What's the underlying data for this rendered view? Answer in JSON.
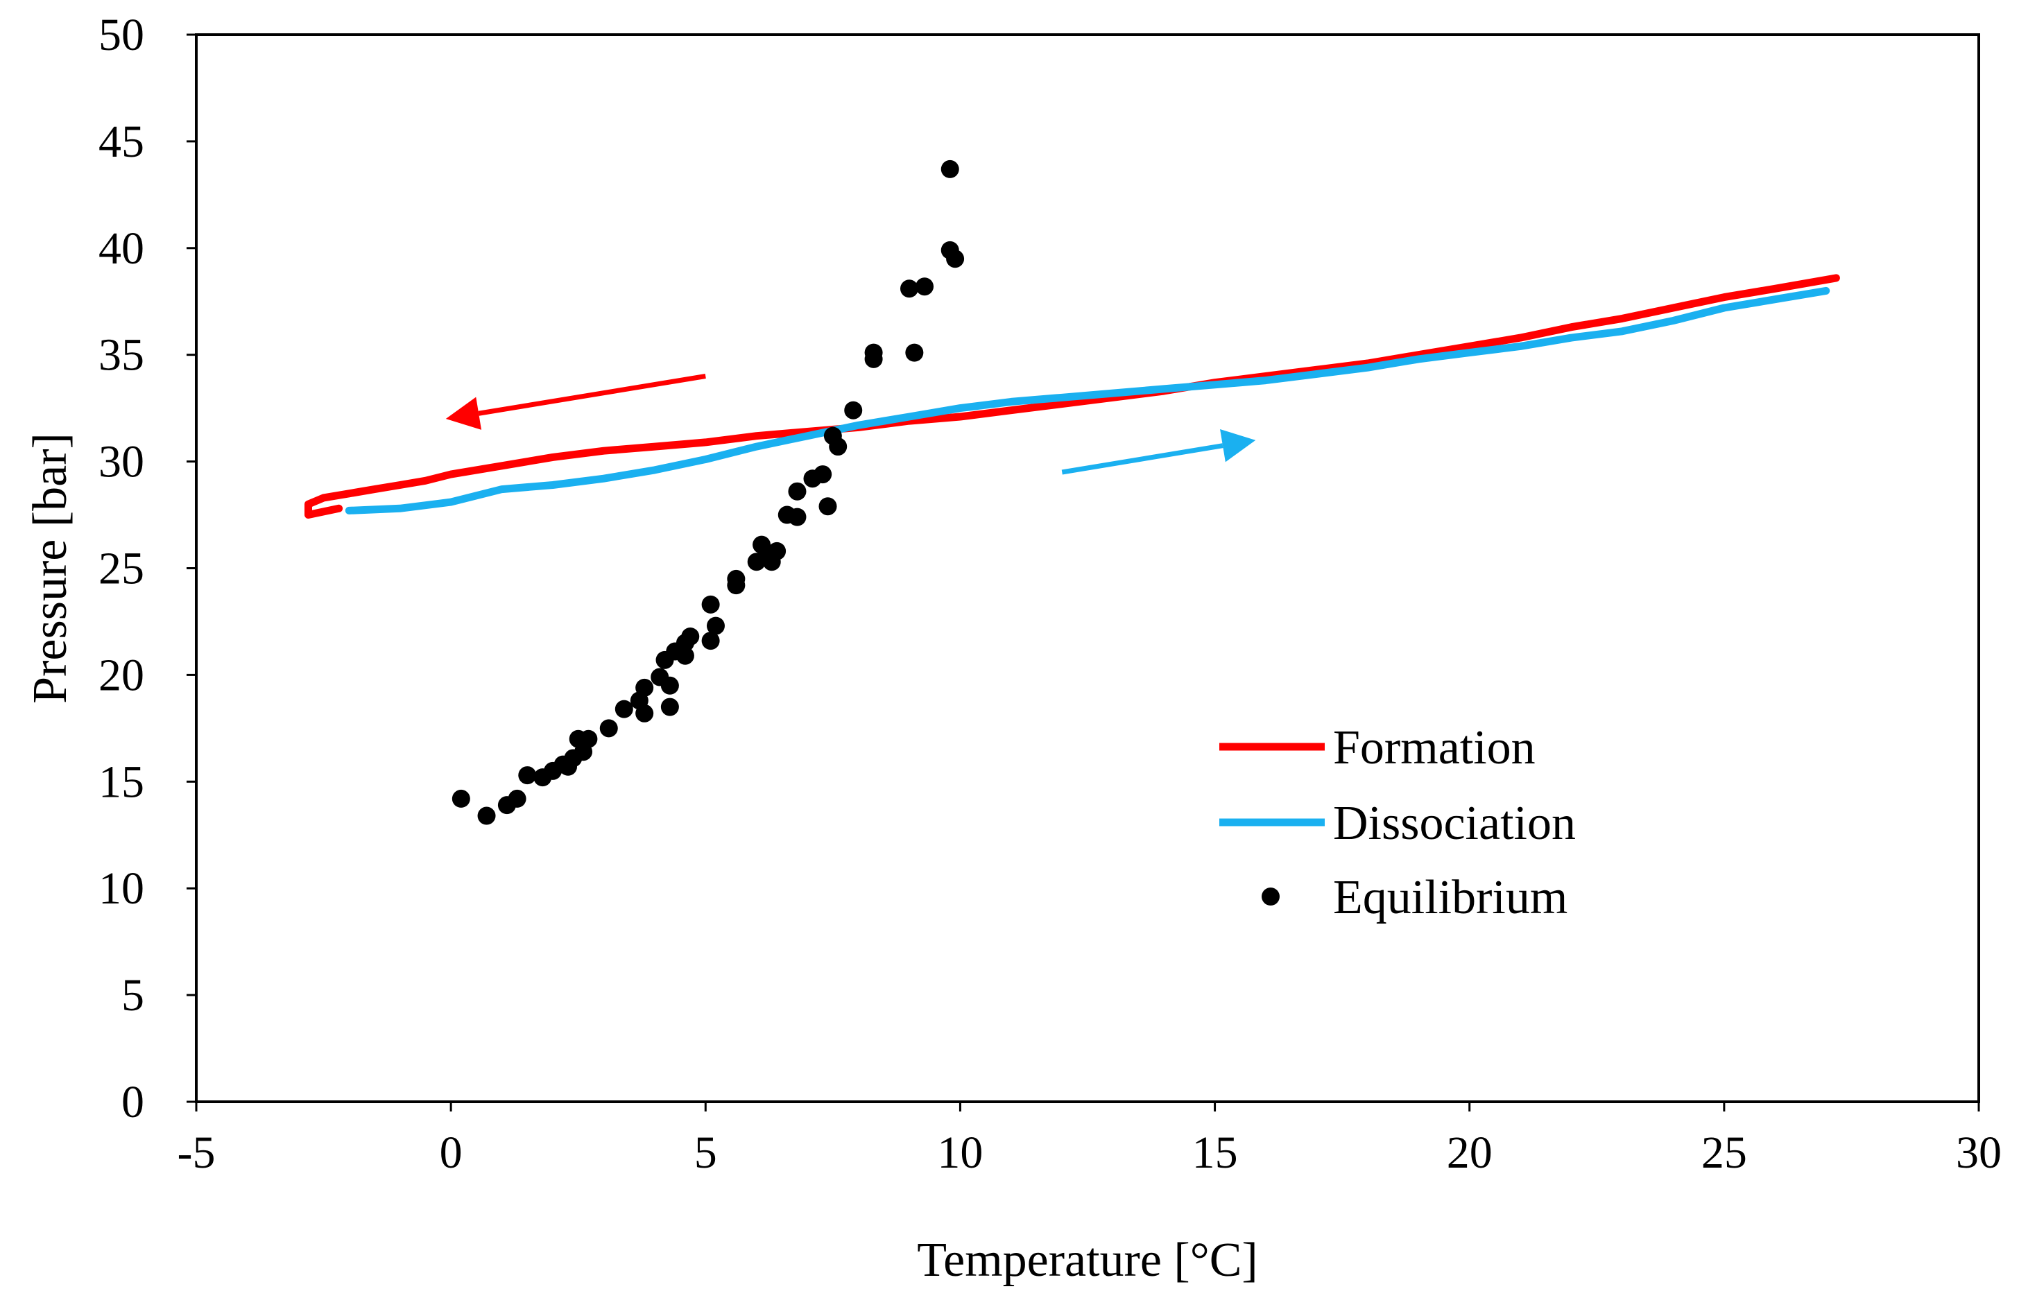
{
  "chart_data": {
    "type": "scatter",
    "title": "",
    "xlabel": "Temperature [°C]",
    "ylabel": "Pressure [bar]",
    "xlim": [
      -5,
      30
    ],
    "ylim": [
      0,
      50
    ],
    "xticks": [
      -5,
      0,
      5,
      10,
      15,
      20,
      25,
      30
    ],
    "yticks": [
      0,
      5,
      10,
      15,
      20,
      25,
      30,
      35,
      40,
      45,
      50
    ],
    "grid": false,
    "legend_position": "center-right",
    "series": [
      {
        "name": "Formation",
        "kind": "line",
        "color": "#ff0000",
        "points": [
          [
            27.2,
            38.6
          ],
          [
            26.0,
            38.1
          ],
          [
            25.0,
            37.7
          ],
          [
            24.0,
            37.2
          ],
          [
            23.0,
            36.7
          ],
          [
            22.0,
            36.3
          ],
          [
            21.0,
            35.8
          ],
          [
            20.0,
            35.4
          ],
          [
            19.0,
            35.0
          ],
          [
            18.0,
            34.6
          ],
          [
            17.0,
            34.3
          ],
          [
            16.0,
            34.0
          ],
          [
            15.0,
            33.7
          ],
          [
            14.0,
            33.3
          ],
          [
            13.0,
            33.0
          ],
          [
            12.0,
            32.7
          ],
          [
            11.0,
            32.4
          ],
          [
            10.0,
            32.1
          ],
          [
            9.0,
            31.9
          ],
          [
            8.0,
            31.6
          ],
          [
            7.0,
            31.4
          ],
          [
            6.0,
            31.2
          ],
          [
            5.0,
            30.9
          ],
          [
            4.0,
            30.7
          ],
          [
            3.0,
            30.5
          ],
          [
            2.0,
            30.2
          ],
          [
            1.0,
            29.8
          ],
          [
            0.0,
            29.4
          ],
          [
            -0.5,
            29.1
          ],
          [
            -1.0,
            28.9
          ],
          [
            -1.5,
            28.7
          ],
          [
            -2.0,
            28.5
          ],
          [
            -2.5,
            28.3
          ],
          [
            -2.8,
            28.0
          ],
          [
            -2.8,
            27.5
          ],
          [
            -2.2,
            27.8
          ]
        ]
      },
      {
        "name": "Dissociation",
        "kind": "line",
        "color": "#1ab0f0",
        "points": [
          [
            -2.0,
            27.7
          ],
          [
            -1.0,
            27.8
          ],
          [
            0.0,
            28.1
          ],
          [
            0.5,
            28.4
          ],
          [
            1.0,
            28.7
          ],
          [
            2.0,
            28.9
          ],
          [
            3.0,
            29.2
          ],
          [
            4.0,
            29.6
          ],
          [
            5.0,
            30.1
          ],
          [
            6.0,
            30.7
          ],
          [
            7.0,
            31.2
          ],
          [
            8.0,
            31.7
          ],
          [
            9.0,
            32.1
          ],
          [
            10.0,
            32.5
          ],
          [
            11.0,
            32.8
          ],
          [
            12.0,
            33.0
          ],
          [
            13.0,
            33.2
          ],
          [
            14.0,
            33.4
          ],
          [
            15.0,
            33.6
          ],
          [
            16.0,
            33.8
          ],
          [
            17.0,
            34.1
          ],
          [
            18.0,
            34.4
          ],
          [
            19.0,
            34.8
          ],
          [
            20.0,
            35.1
          ],
          [
            21.0,
            35.4
          ],
          [
            22.0,
            35.8
          ],
          [
            23.0,
            36.1
          ],
          [
            24.0,
            36.6
          ],
          [
            25.0,
            37.2
          ],
          [
            26.0,
            37.6
          ],
          [
            27.0,
            38.0
          ]
        ]
      },
      {
        "name": "Equilibrium",
        "kind": "scatter",
        "color": "#000000",
        "points": [
          [
            0.2,
            14.2
          ],
          [
            0.7,
            13.4
          ],
          [
            1.1,
            13.9
          ],
          [
            1.3,
            14.2
          ],
          [
            1.5,
            15.3
          ],
          [
            1.8,
            15.2
          ],
          [
            2.0,
            15.5
          ],
          [
            2.2,
            15.8
          ],
          [
            2.3,
            15.7
          ],
          [
            2.4,
            16.1
          ],
          [
            2.5,
            17.0
          ],
          [
            2.6,
            16.4
          ],
          [
            2.7,
            17.0
          ],
          [
            3.1,
            17.5
          ],
          [
            3.4,
            18.4
          ],
          [
            3.7,
            18.8
          ],
          [
            3.8,
            18.2
          ],
          [
            3.8,
            19.4
          ],
          [
            4.1,
            19.9
          ],
          [
            4.2,
            20.7
          ],
          [
            4.3,
            19.5
          ],
          [
            4.3,
            18.5
          ],
          [
            4.4,
            21.1
          ],
          [
            4.6,
            20.9
          ],
          [
            4.6,
            21.5
          ],
          [
            4.7,
            21.8
          ],
          [
            5.1,
            21.6
          ],
          [
            5.1,
            23.3
          ],
          [
            5.2,
            22.3
          ],
          [
            5.6,
            24.2
          ],
          [
            5.6,
            24.5
          ],
          [
            6.0,
            25.3
          ],
          [
            6.1,
            26.1
          ],
          [
            6.2,
            25.7
          ],
          [
            6.3,
            25.3
          ],
          [
            6.4,
            25.8
          ],
          [
            6.6,
            27.5
          ],
          [
            6.8,
            27.4
          ],
          [
            6.8,
            28.6
          ],
          [
            7.1,
            29.2
          ],
          [
            7.3,
            29.4
          ],
          [
            7.4,
            27.9
          ],
          [
            7.5,
            31.2
          ],
          [
            7.6,
            30.7
          ],
          [
            7.9,
            32.4
          ],
          [
            8.3,
            35.1
          ],
          [
            8.3,
            34.8
          ],
          [
            9.0,
            38.1
          ],
          [
            9.1,
            35.1
          ],
          [
            9.3,
            38.2
          ],
          [
            9.8,
            43.7
          ],
          [
            9.8,
            39.9
          ],
          [
            9.9,
            39.5
          ]
        ]
      }
    ],
    "annotations": [
      {
        "kind": "arrow",
        "color": "#ff0000",
        "from": [
          5.0,
          34.0
        ],
        "to": [
          -0.1,
          32.0
        ]
      },
      {
        "kind": "arrow",
        "color": "#1ab0f0",
        "from": [
          12.0,
          29.5
        ],
        "to": [
          15.8,
          31.0
        ]
      }
    ]
  }
}
